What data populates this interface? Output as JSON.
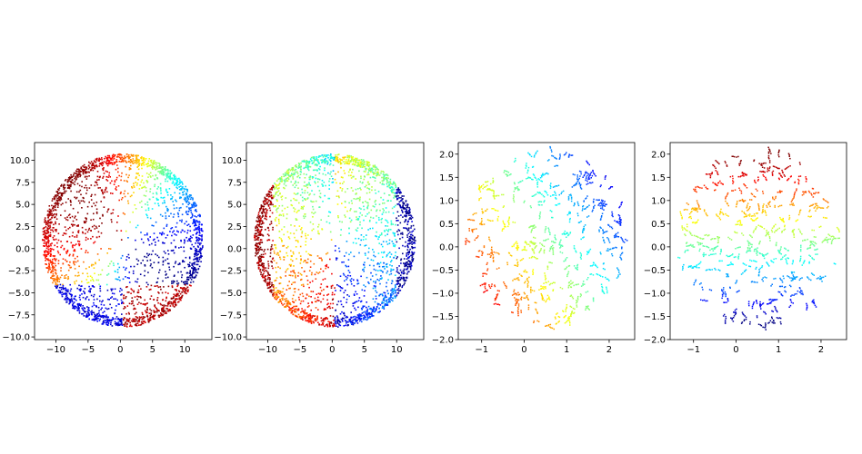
{
  "chart_data": [
    {
      "type": "scatter",
      "title": "",
      "xlabel": "",
      "ylabel": "",
      "xlim": [
        -13.3,
        14.2
      ],
      "ylim": [
        -10.3,
        12.0
      ],
      "xticks": [
        -10,
        -5,
        0,
        5,
        10
      ],
      "xtick_labels": [
        "−10",
        "−5",
        "0",
        "5",
        "10"
      ],
      "yticks": [
        -10.0,
        -7.5,
        -5.0,
        -2.5,
        0.0,
        2.5,
        5.0,
        7.5,
        10.0
      ],
      "ytick_labels": [
        "−10.0",
        "−7.5",
        "−5.0",
        "−2.5",
        "0.0",
        "2.5",
        "5.0",
        "7.5",
        "10.0"
      ],
      "colormap": "jet",
      "grid": false,
      "legend": "none",
      "shape": "ellipse",
      "center": [
        0.3,
        1.0
      ],
      "radius": [
        12.5,
        9.8
      ],
      "color_mode": "angular",
      "n_points": 2600
    },
    {
      "type": "scatter",
      "title": "",
      "xlabel": "",
      "ylabel": "",
      "xlim": [
        -13.3,
        14.2
      ],
      "ylim": [
        -10.3,
        12.0
      ],
      "xticks": [
        -10,
        -5,
        0,
        5,
        10
      ],
      "xtick_labels": [
        "−10",
        "−5",
        "0",
        "5",
        "10"
      ],
      "yticks": [
        -10.0,
        -7.5,
        -5.0,
        -2.5,
        0.0,
        2.5,
        5.0,
        7.5,
        10.0
      ],
      "ytick_labels": [
        "−10.0",
        "−7.5",
        "−5.0",
        "−2.5",
        "0.0",
        "2.5",
        "5.0",
        "7.5",
        "10.0"
      ],
      "colormap": "jet",
      "grid": false,
      "legend": "none",
      "shape": "ellipse",
      "center": [
        0.3,
        1.0
      ],
      "radius": [
        12.5,
        9.8
      ],
      "color_mode": "double_lobe",
      "n_points": 2600
    },
    {
      "type": "scatter",
      "title": "",
      "xlabel": "",
      "ylabel": "",
      "xlim": [
        -1.55,
        2.6
      ],
      "ylim": [
        -2.0,
        2.25
      ],
      "xticks": [
        -1,
        0,
        1,
        2
      ],
      "xtick_labels": [
        "−1",
        "0",
        "1",
        "2"
      ],
      "yticks": [
        -2.0,
        -1.5,
        -1.0,
        -0.5,
        0.0,
        0.5,
        1.0,
        1.5,
        2.0
      ],
      "ytick_labels": [
        "−2.0",
        "−1.5",
        "−1.0",
        "−0.5",
        "0.0",
        "0.5",
        "1.0",
        "1.5",
        "2.0"
      ],
      "colormap": "jet",
      "grid": false,
      "legend": "none",
      "shape": "clusters",
      "center": [
        0.5,
        0.2
      ],
      "radius": [
        1.9,
        1.9
      ],
      "color_mode": "diagonal_x",
      "n_points": 320
    },
    {
      "type": "scatter",
      "title": "",
      "xlabel": "",
      "ylabel": "",
      "xlim": [
        -1.55,
        2.6
      ],
      "ylim": [
        -2.0,
        2.25
      ],
      "xticks": [
        -1,
        0,
        1,
        2
      ],
      "xtick_labels": [
        "−1",
        "0",
        "1",
        "2"
      ],
      "yticks": [
        -2.0,
        -1.5,
        -1.0,
        -0.5,
        0.0,
        0.5,
        1.0,
        1.5,
        2.0
      ],
      "ytick_labels": [
        "−2.0",
        "−1.5",
        "−1.0",
        "−0.5",
        "0.0",
        "0.5",
        "1.0",
        "1.5",
        "2.0"
      ],
      "colormap": "jet",
      "grid": false,
      "legend": "none",
      "shape": "clusters",
      "center": [
        0.5,
        0.2
      ],
      "radius": [
        1.9,
        1.9
      ],
      "color_mode": "vertical",
      "n_points": 320
    }
  ]
}
